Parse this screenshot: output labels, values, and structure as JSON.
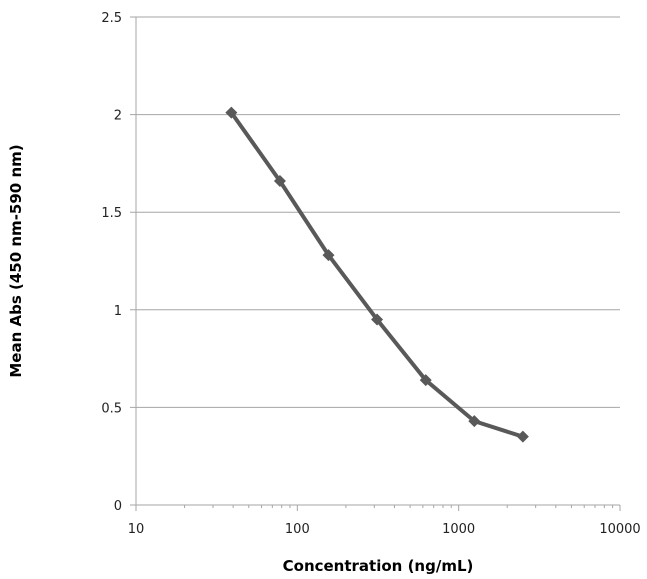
{
  "chart_data": {
    "type": "line",
    "title": "",
    "xlabel": "Concentration (ng/mL)",
    "ylabel": "Mean Abs (450 nm-590 nm)",
    "x_scale": "log",
    "xlim": [
      10,
      10000
    ],
    "ylim": [
      0,
      2.5
    ],
    "x_ticks": [
      10,
      100,
      1000,
      10000
    ],
    "x_tick_labels": [
      "10",
      "100",
      "1000",
      "10000"
    ],
    "y_ticks": [
      0,
      0.5,
      1,
      1.5,
      2,
      2.5
    ],
    "y_tick_labels": [
      "0",
      "0.5",
      "1",
      "1.5",
      "2",
      "2.5"
    ],
    "grid": "horizontal",
    "legend": "none",
    "series": [
      {
        "marker": "diamond",
        "color": "#595959",
        "x": [
          39,
          78,
          156,
          312,
          625,
          1250,
          2500
        ],
        "y": [
          2.01,
          1.66,
          1.28,
          0.95,
          0.64,
          0.43,
          0.35
        ]
      }
    ]
  }
}
